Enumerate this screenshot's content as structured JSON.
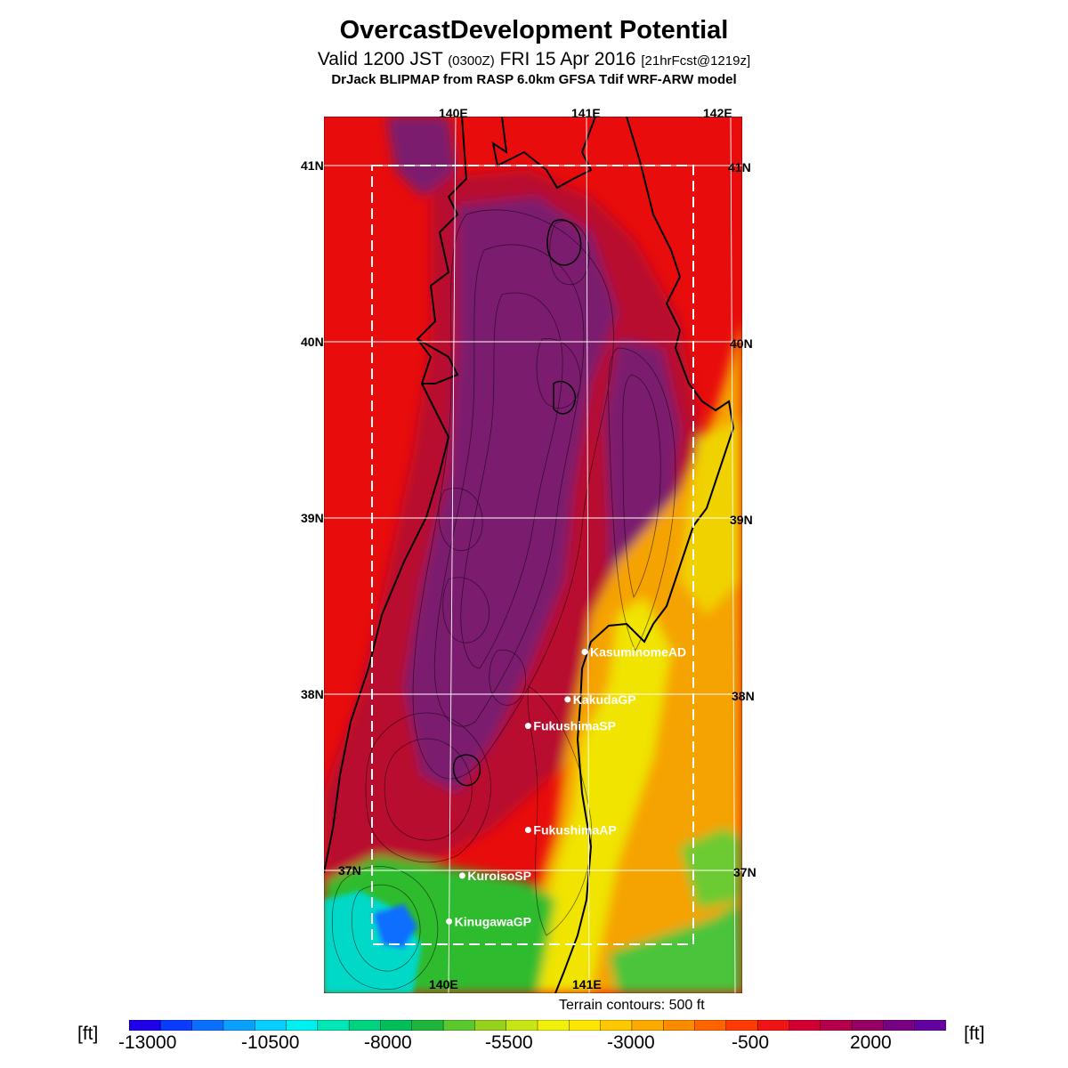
{
  "title": "OvercastDevelopment Potential",
  "subtitle_valid": "Valid 1200 JST",
  "subtitle_utc": "(0300Z)",
  "subtitle_date": "FRI 15 Apr 2016",
  "subtitle_fcst": "[21hrFcst@1219z]",
  "model": "DrJack BLIPMAP from RASP 6.0km GFSA Tdif WRF-ARW model",
  "terrain_note": "Terrain contours: 500 ft",
  "units": "[ft]",
  "lon_top": [
    "140E",
    "141E",
    "142E"
  ],
  "lon_bottom": [
    "140E",
    "141E"
  ],
  "lat_left": [
    "41N",
    "40N",
    "39N",
    "38N",
    "37N"
  ],
  "lat_right": [
    "41N",
    "40N",
    "39N",
    "38N",
    "37N"
  ],
  "sites": [
    {
      "name": "KasuminomeAD",
      "lon": 140.98,
      "lat": 38.24
    },
    {
      "name": "KakudaGP",
      "lon": 140.85,
      "lat": 37.97
    },
    {
      "name": "FukushimaSP",
      "lon": 140.55,
      "lat": 37.82
    },
    {
      "name": "FukushimaAP",
      "lon": 140.55,
      "lat": 37.23
    },
    {
      "name": "KuroisoSP",
      "lon": 140.05,
      "lat": 36.97
    },
    {
      "name": "KinugawaGP",
      "lon": 139.95,
      "lat": 36.71
    }
  ],
  "colorbar": {
    "labels": [
      "-13000",
      "-10500",
      "-8000",
      "-5500",
      "-3000",
      "-500",
      "2000"
    ],
    "colors": [
      "#1e00e8",
      "#0a3cff",
      "#0a6eff",
      "#0aa0ff",
      "#0acdff",
      "#00f0f0",
      "#00e6b4",
      "#00d282",
      "#00be5a",
      "#1eb43c",
      "#5ac82d",
      "#96d21e",
      "#c8e614",
      "#f0f00a",
      "#ffe600",
      "#ffc800",
      "#ffaa00",
      "#ff8c00",
      "#ff6400",
      "#ff3c00",
      "#f01414",
      "#d20032",
      "#b40046",
      "#960064",
      "#780082",
      "#6400a0"
    ]
  },
  "colors": {
    "red": "#e80c0c",
    "crimson": "#b8082e",
    "purple": "#7c1a6e",
    "orange": "#f5a300",
    "yellow": "#f0e400",
    "green": "#2ebc2e"
  }
}
